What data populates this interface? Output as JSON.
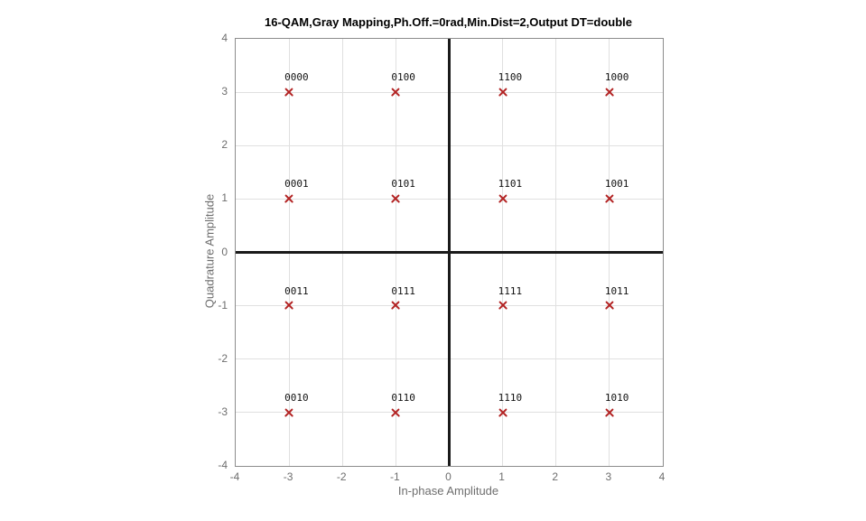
{
  "chart_data": {
    "type": "scatter",
    "title": "16-QAM,Gray Mapping,Ph.Off.=0rad,Min.Dist=2,Output DT=double",
    "xlabel": "In-phase Amplitude",
    "ylabel": "Quadrature Amplitude",
    "xlim": [
      -4,
      4
    ],
    "ylim": [
      -4,
      4
    ],
    "xticks": [
      -4,
      -3,
      -2,
      -1,
      0,
      1,
      2,
      3,
      4
    ],
    "yticks": [
      -4,
      -3,
      -2,
      -1,
      0,
      1,
      2,
      3,
      4
    ],
    "grid": true,
    "zero_axis_lines": true,
    "marker_shape": "x",
    "points": [
      {
        "x": -3,
        "y": 3,
        "label": "0000"
      },
      {
        "x": -1,
        "y": 3,
        "label": "0100"
      },
      {
        "x": 1,
        "y": 3,
        "label": "1100"
      },
      {
        "x": 3,
        "y": 3,
        "label": "1000"
      },
      {
        "x": -3,
        "y": 1,
        "label": "0001"
      },
      {
        "x": -1,
        "y": 1,
        "label": "0101"
      },
      {
        "x": 1,
        "y": 1,
        "label": "1101"
      },
      {
        "x": 3,
        "y": 1,
        "label": "1001"
      },
      {
        "x": -3,
        "y": -1,
        "label": "0011"
      },
      {
        "x": -1,
        "y": -1,
        "label": "0111"
      },
      {
        "x": 1,
        "y": -1,
        "label": "1111"
      },
      {
        "x": 3,
        "y": -1,
        "label": "1011"
      },
      {
        "x": -3,
        "y": -3,
        "label": "0010"
      },
      {
        "x": -1,
        "y": -3,
        "label": "0110"
      },
      {
        "x": 1,
        "y": -3,
        "label": "1110"
      },
      {
        "x": 3,
        "y": -3,
        "label": "1010"
      }
    ]
  },
  "colors": {
    "marker": "#b22222",
    "grid": "#e0e0e0",
    "axis_box": "#8c8c8c",
    "zero_line": "#1a1a1a",
    "tick_label": "#6e6e6e",
    "title": "#000000"
  }
}
